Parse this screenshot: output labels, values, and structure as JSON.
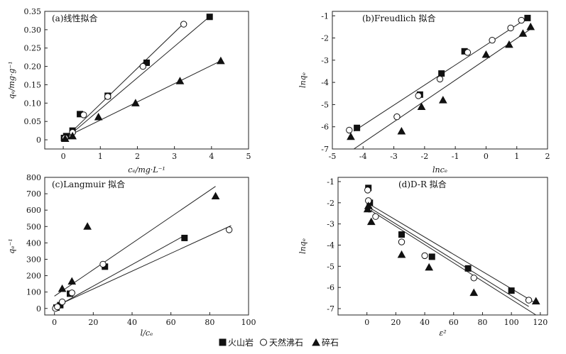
{
  "legend": [
    {
      "marker": "filled-square",
      "label": "火山岩"
    },
    {
      "marker": "open-circle",
      "label": "天然沸石"
    },
    {
      "marker": "filled-triangle",
      "label": "碎石"
    }
  ],
  "chart_data": [
    {
      "type": "scatter",
      "title": "(a)线性拟合",
      "xlabel": "cₑ/mg·L⁻¹",
      "ylabel": "qₑ/mg·g⁻¹",
      "xlim": [
        -0.5,
        5
      ],
      "ylim": [
        -0.025,
        0.35
      ],
      "xticks": [
        0,
        1,
        2,
        3,
        4,
        5
      ],
      "yticks": [
        0,
        0.05,
        0.1,
        0.15,
        0.2,
        0.25,
        0.3,
        0.35
      ],
      "xtick_labels": [
        "0",
        "1",
        "2",
        "3",
        "4",
        "5"
      ],
      "ytick_labels": [
        "0",
        "0.05",
        "0.10",
        "0.15",
        "0.20",
        "0.25",
        "0.30",
        "0.35"
      ],
      "series": [
        {
          "marker": "filled-square",
          "x": [
            0.02,
            0.08,
            0.25,
            0.45,
            1.2,
            2.25,
            3.95
          ],
          "y": [
            0.005,
            0.01,
            0.025,
            0.07,
            0.12,
            0.21,
            0.335
          ]
        },
        {
          "marker": "open-circle",
          "x": [
            0.05,
            0.25,
            0.55,
            1.2,
            2.15,
            3.25
          ],
          "y": [
            0.005,
            0.02,
            0.068,
            0.118,
            0.2,
            0.315
          ]
        },
        {
          "marker": "filled-triangle",
          "x": [
            0.05,
            0.25,
            0.95,
            1.95,
            3.15,
            4.25
          ],
          "y": [
            0.003,
            0.01,
            0.062,
            0.1,
            0.16,
            0.215
          ]
        }
      ],
      "fit_lines": [
        {
          "x": [
            0,
            4.0
          ],
          "y": [
            -0.002,
            0.34
          ]
        },
        {
          "x": [
            0,
            3.25
          ],
          "y": [
            0.0,
            0.317
          ]
        },
        {
          "x": [
            0,
            4.25
          ],
          "y": [
            0.004,
            0.215
          ]
        }
      ],
      "grid": false
    },
    {
      "type": "scatter",
      "title": "(b)Freudlich 拟合",
      "xlabel": "lncₑ",
      "ylabel": "lnqₑ",
      "xlim": [
        -5,
        2
      ],
      "ylim": [
        -7,
        -0.8
      ],
      "xticks": [
        -5,
        -4,
        -3,
        -2,
        -1,
        0,
        1,
        2
      ],
      "yticks": [
        -7,
        -6,
        -5,
        -4,
        -3,
        -2,
        -1
      ],
      "xtick_labels": [
        "-5",
        "-4",
        "-3",
        "-2",
        "-1",
        "0",
        "1",
        "2"
      ],
      "ytick_labels": [
        "-7",
        "-6",
        "-5",
        "-4",
        "-3",
        "-2",
        "-1"
      ],
      "series": [
        {
          "marker": "filled-square",
          "x": [
            -4.2,
            -2.15,
            -1.45,
            -0.7,
            1.35
          ],
          "y": [
            -6.05,
            -4.55,
            -3.6,
            -2.6,
            -1.1
          ]
        },
        {
          "marker": "open-circle",
          "x": [
            -4.45,
            -2.9,
            -2.2,
            -1.5,
            -0.6,
            0.2,
            0.8,
            1.15
          ],
          "y": [
            -6.15,
            -5.55,
            -4.6,
            -3.85,
            -2.65,
            -2.1,
            -1.55,
            -1.2
          ]
        },
        {
          "marker": "filled-triangle",
          "x": [
            -4.4,
            -2.75,
            -2.1,
            -1.4,
            0.0,
            0.75,
            1.2,
            1.45
          ],
          "y": [
            -6.45,
            -6.2,
            -5.1,
            -4.8,
            -2.75,
            -2.3,
            -1.8,
            -1.5
          ]
        }
      ],
      "fit_lines": [
        {
          "x": [
            -4.3,
            1.4
          ],
          "y": [
            -6.2,
            -1.05
          ]
        },
        {
          "x": [
            -4.3,
            1.5
          ],
          "y": [
            -7.0,
            -1.55
          ]
        }
      ],
      "grid": false
    },
    {
      "type": "scatter",
      "title": "(c)Langmuir 拟合",
      "xlabel": "l/cₑ",
      "ylabel": "qₑ⁻¹",
      "xlim": [
        -5,
        100
      ],
      "ylim": [
        -40,
        800
      ],
      "xticks": [
        0,
        20,
        40,
        60,
        80,
        100
      ],
      "yticks": [
        0,
        100,
        200,
        300,
        400,
        500,
        600,
        700,
        800
      ],
      "xtick_labels": [
        "0",
        "20",
        "40",
        "60",
        "80",
        "100"
      ],
      "ytick_labels": [
        "0",
        "100",
        "200",
        "300",
        "400",
        "500",
        "600",
        "700",
        "800"
      ],
      "series": [
        {
          "marker": "filled-square",
          "x": [
            1,
            3,
            8,
            26,
            67
          ],
          "y": [
            5,
            20,
            90,
            255,
            430
          ]
        },
        {
          "marker": "open-circle",
          "x": [
            0.5,
            1.5,
            4,
            9,
            25,
            90
          ],
          "y": [
            0,
            10,
            40,
            95,
            270,
            480
          ]
        },
        {
          "marker": "filled-triangle",
          "x": [
            4,
            9,
            17,
            83
          ],
          "y": [
            120,
            165,
            500,
            685
          ]
        }
      ],
      "fit_lines": [
        {
          "x": [
            0,
            83
          ],
          "y": [
            75,
            745
          ]
        },
        {
          "x": [
            0,
            91
          ],
          "y": [
            10,
            505
          ]
        },
        {
          "x": [
            0,
            67
          ],
          "y": [
            5,
            445
          ]
        }
      ],
      "grid": false
    },
    {
      "type": "scatter",
      "title": "(d)D-R 拟合",
      "xlabel": "ε²",
      "ylabel": "lnqₑ",
      "xlim": [
        -20,
        125
      ],
      "ylim": [
        -7.3,
        -0.8
      ],
      "xticks": [
        0,
        20,
        40,
        60,
        80,
        100,
        120
      ],
      "yticks": [
        -7,
        -6,
        -5,
        -4,
        -3,
        -2,
        -1
      ],
      "xtick_labels": [
        "0",
        "20",
        "40",
        "60",
        "80",
        "100",
        "120"
      ],
      "ytick_labels": [
        "-7",
        "-6",
        "-5",
        "-4",
        "-3",
        "-2",
        "-1"
      ],
      "series": [
        {
          "marker": "filled-square",
          "x": [
            1,
            2,
            24,
            45,
            70,
            100
          ],
          "y": [
            -1.3,
            -2.0,
            -3.5,
            -4.55,
            -5.1,
            -6.15
          ]
        },
        {
          "marker": "open-circle",
          "x": [
            0.5,
            1,
            1.5,
            6,
            24,
            40,
            74,
            112
          ],
          "y": [
            -1.4,
            -1.9,
            -2.3,
            -2.65,
            -3.85,
            -4.5,
            -5.55,
            -6.6
          ]
        },
        {
          "marker": "filled-triangle",
          "x": [
            0.5,
            1,
            3,
            24,
            43,
            74,
            117
          ],
          "y": [
            -2.3,
            -2.15,
            -2.9,
            -4.45,
            -5.05,
            -6.25,
            -6.65
          ]
        }
      ],
      "fit_lines": [
        {
          "x": [
            0,
            117
          ],
          "y": [
            -2.0,
            -6.75
          ]
        },
        {
          "x": [
            0,
            112
          ],
          "y": [
            -2.15,
            -6.9
          ]
        },
        {
          "x": [
            0,
            117
          ],
          "y": [
            -2.25,
            -7.3
          ]
        }
      ],
      "grid": false
    }
  ]
}
